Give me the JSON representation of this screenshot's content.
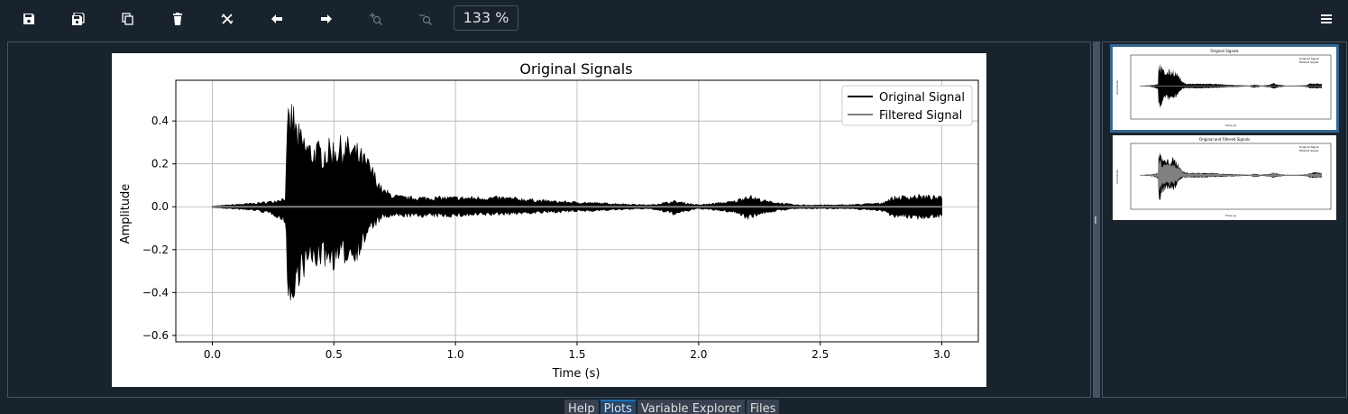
{
  "toolbar": {
    "buttons": [
      {
        "name": "save-icon"
      },
      {
        "name": "save-all-icon"
      },
      {
        "name": "copy-icon"
      },
      {
        "name": "delete-icon"
      },
      {
        "name": "delete-all-icon"
      },
      {
        "name": "previous-arrow-icon"
      },
      {
        "name": "next-arrow-icon"
      },
      {
        "name": "zoom-in-icon"
      },
      {
        "name": "zoom-out-icon"
      }
    ],
    "zoom_value": "133 %",
    "menu_icon": "hamburger-menu-icon"
  },
  "colors": {
    "background": "#19232d",
    "border": "#455364",
    "accent": "#346792",
    "original_signal": "#000000",
    "filtered_signal": "#808080"
  },
  "chart_data": {
    "type": "line",
    "title": "Original Signals",
    "xlabel": "Time (s)",
    "ylabel": "Amplitude",
    "xlim": [
      -0.15,
      3.15
    ],
    "ylim": [
      -0.63,
      0.59
    ],
    "xticks": [
      "0.0",
      "0.5",
      "1.0",
      "1.5",
      "2.0",
      "2.5",
      "3.0"
    ],
    "xtick_values": [
      0.0,
      0.5,
      1.0,
      1.5,
      2.0,
      2.5,
      3.0
    ],
    "yticks": [
      "0.4",
      "0.2",
      "0.0",
      "−0.2",
      "−0.4",
      "−0.6"
    ],
    "ytick_values": [
      0.4,
      0.2,
      0.0,
      -0.2,
      -0.4,
      -0.6
    ],
    "grid": true,
    "legend_position": "top-right",
    "series": [
      {
        "name": "Original Signal",
        "envelope": {
          "t": [
            0.0,
            0.18,
            0.25,
            0.3,
            0.31,
            0.33,
            0.35,
            0.4,
            0.45,
            0.5,
            0.55,
            0.6,
            0.65,
            0.7,
            0.75,
            0.8,
            1.0,
            1.2,
            1.4,
            1.6,
            1.8,
            1.9,
            2.0,
            2.15,
            2.2,
            2.28,
            2.4,
            2.6,
            2.75,
            2.8,
            2.9,
            3.0
          ],
          "upper": [
            0.004,
            0.02,
            0.03,
            0.05,
            0.45,
            0.52,
            0.4,
            0.32,
            0.31,
            0.33,
            0.34,
            0.3,
            0.22,
            0.09,
            0.06,
            0.05,
            0.05,
            0.05,
            0.03,
            0.02,
            0.01,
            0.03,
            0.01,
            0.03,
            0.06,
            0.03,
            0.01,
            0.01,
            0.02,
            0.05,
            0.06,
            0.05
          ],
          "lower": [
            -0.004,
            -0.02,
            -0.04,
            -0.08,
            -0.4,
            -0.57,
            -0.38,
            -0.3,
            -0.28,
            -0.3,
            -0.27,
            -0.25,
            -0.12,
            -0.06,
            -0.05,
            -0.05,
            -0.05,
            -0.04,
            -0.03,
            -0.02,
            -0.01,
            -0.04,
            -0.01,
            -0.03,
            -0.06,
            -0.03,
            -0.01,
            -0.01,
            -0.02,
            -0.05,
            -0.06,
            -0.05
          ]
        }
      },
      {
        "name": "Filtered Signal",
        "values_t": [
          0.0,
          3.0
        ],
        "values_y": [
          0.0,
          0.0
        ]
      }
    ]
  },
  "thumbnails": [
    {
      "title": "Original Signals",
      "legend": [
        "Original Signal",
        "Filtered Signal"
      ],
      "xlabel": "Time (s)",
      "ylabel": "Amplitude",
      "selected": true
    },
    {
      "title": "Original and Filtered Signals",
      "legend": [
        "Original Signal",
        "Filtered Signal"
      ],
      "xlabel": "Time (s)",
      "ylabel": "Amplitude",
      "selected": false
    }
  ],
  "tabs": [
    {
      "label": "Help"
    },
    {
      "label": "Plots",
      "active": true
    },
    {
      "label": "Variable Explorer"
    },
    {
      "label": "Files"
    }
  ]
}
